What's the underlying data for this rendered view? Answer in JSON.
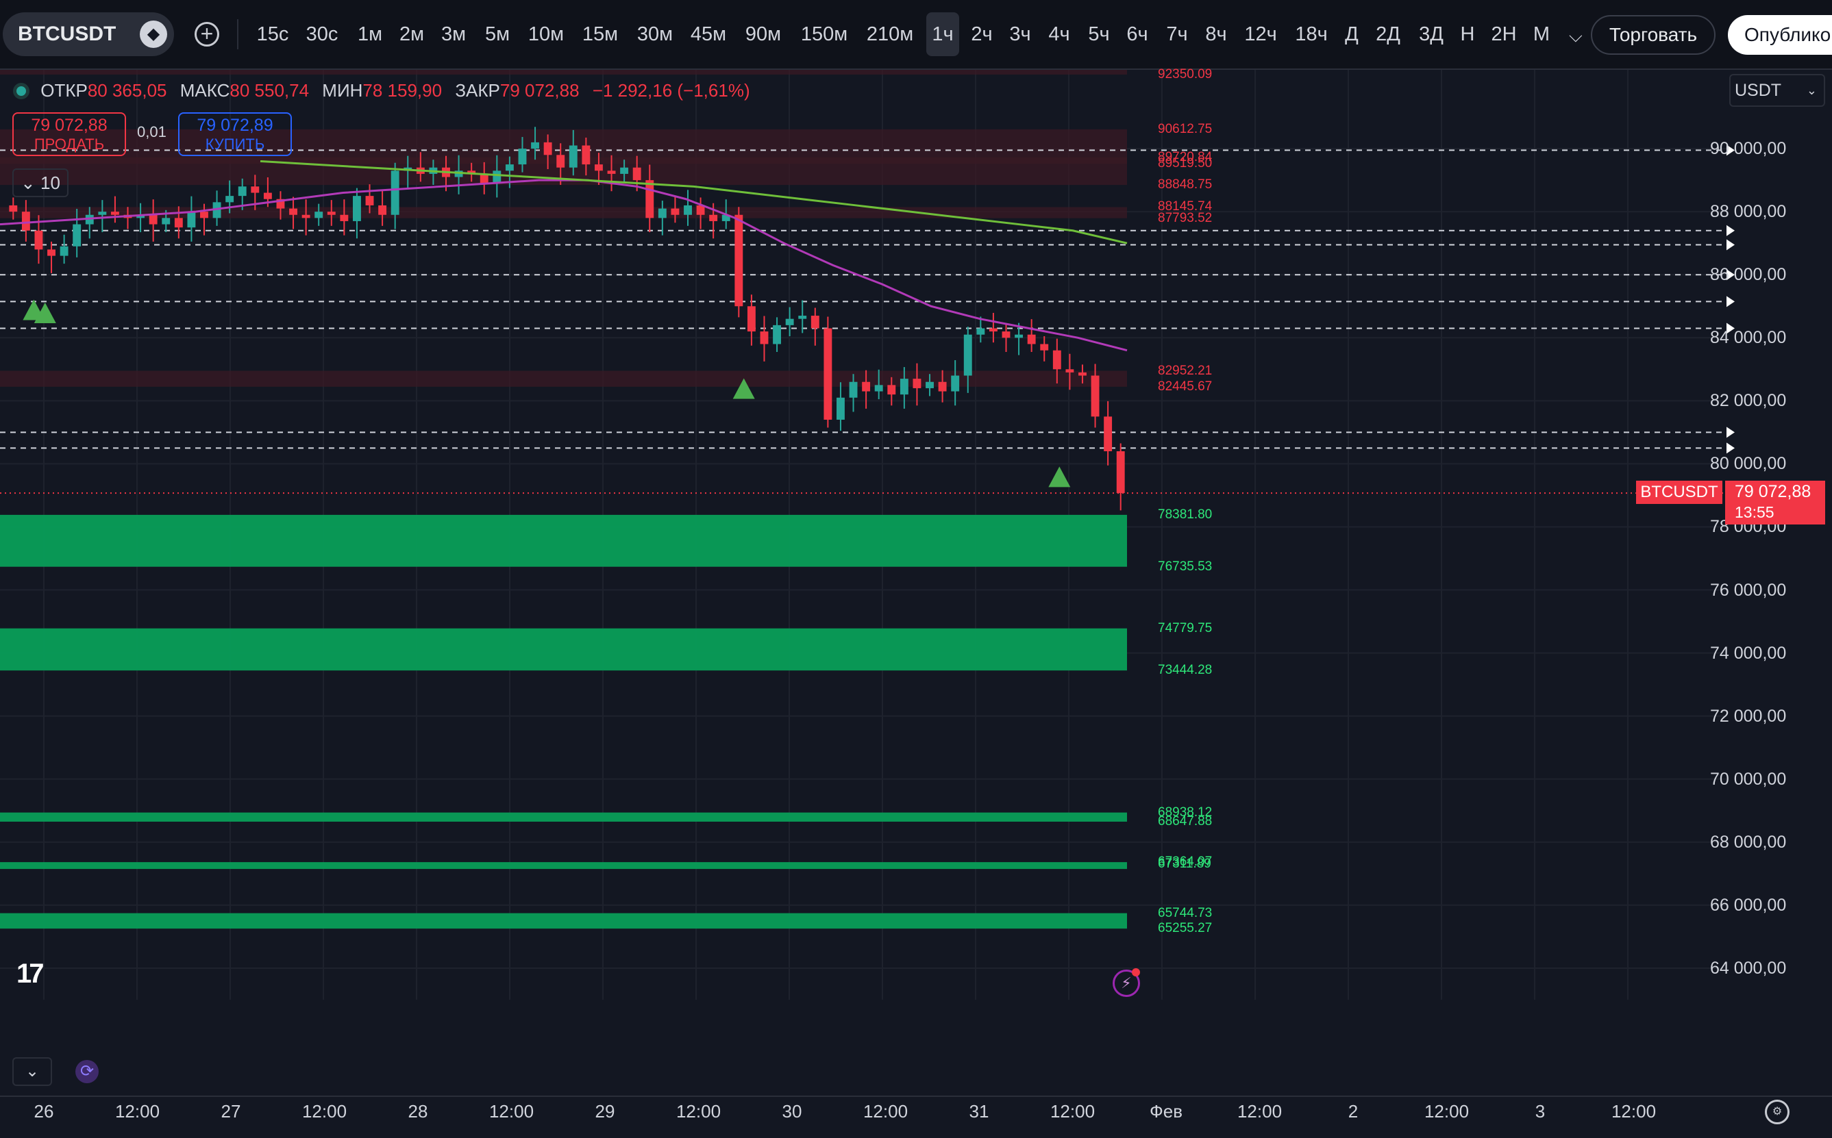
{
  "toolbar": {
    "symbol": "BTCUSDT",
    "intervals": [
      "15с",
      "30с",
      "1м",
      "2м",
      "3м",
      "5м",
      "10м",
      "15м",
      "30м",
      "45м",
      "90м",
      "150м",
      "210м",
      "1ч",
      "2ч",
      "3ч",
      "4ч",
      "5ч",
      "6ч",
      "7ч",
      "8ч",
      "12ч",
      "18ч",
      "Д",
      "2Д",
      "3Д",
      "Н",
      "2Н",
      "М"
    ],
    "active_interval": "1ч",
    "trade_label": "Торговать",
    "publish_label": "Опубликовать"
  },
  "legend": {
    "open_label": "ОТКР",
    "open": "80 365,05",
    "high_label": "МАКС",
    "high": "80 550,74",
    "low_label": "МИН",
    "low": "78 159,90",
    "close_label": "ЗАКР",
    "close": "79 072,88",
    "change": "−1 292,16 (−1,61%)"
  },
  "order_panel": {
    "sell_price": "79 072,88",
    "sell_label": "ПРОДАТЬ",
    "buy_price": "79 072,89",
    "buy_label": "КУПИТЬ",
    "spread": "0,01",
    "indicator_count": "10"
  },
  "currency": "USDT",
  "price_axis": [
    "90 000,00",
    "88 000,00",
    "86 000,00",
    "84 000,00",
    "82 000,00",
    "80 000,00",
    "78 000,00",
    "76 000,00",
    "74 000,00",
    "72 000,00",
    "70 000,00",
    "68 000,00",
    "66 000,00",
    "64 000,00"
  ],
  "current_price_tag": {
    "symbol": "BTCUSDT",
    "price": "79 072,88",
    "countdown": "13:55"
  },
  "time_axis": [
    "26",
    "12:00",
    "27",
    "12:00",
    "28",
    "12:00",
    "29",
    "12:00",
    "30",
    "12:00",
    "31",
    "12:00",
    "Фев",
    "12:00",
    "2",
    "12:00",
    "3",
    "12:00"
  ],
  "colors": {
    "up": "#26a69a",
    "down": "#f23645",
    "ma_fast": "#b23ab8",
    "ma_slow": "#6fbf3a",
    "demand_zone": "#089e59",
    "supply_zone": "#3a1a24"
  },
  "chart_data": {
    "type": "candlestick",
    "y_range": [
      63000,
      92500
    ],
    "x_labels": [
      "26",
      "27",
      "28",
      "29",
      "30",
      "31",
      "Фев",
      "2",
      "3"
    ],
    "resistance_levels": [
      "92350.09",
      "90612.75",
      "89720.84",
      "89519.50",
      "88848.75",
      "88145.74",
      "87793.52",
      "82952.21",
      "82445.67"
    ],
    "support_levels": [
      "78381.80",
      "76735.53",
      "74779.75",
      "73444.28",
      "68938.12",
      "68647.88",
      "67364.07",
      "67311.89",
      "65744.73",
      "65255.27"
    ],
    "demand_zones": [
      [
        76735.53,
        78381.8
      ],
      [
        73444.28,
        74779.75
      ],
      [
        68647.88,
        68938.12
      ],
      [
        67311.89,
        67364.07
      ],
      [
        65255.27,
        65744.73
      ]
    ],
    "supply_zones": [
      [
        92350.09,
        92500
      ],
      [
        89519.5,
        90612.75
      ],
      [
        88848.75,
        89720.84
      ],
      [
        87793.52,
        88145.74
      ],
      [
        82445.67,
        82952.21
      ]
    ],
    "horizontal_lines": [
      89950,
      87400,
      86950,
      86000,
      85150,
      84300,
      81000,
      80500
    ],
    "buy_signals": [
      [
        0.03,
        85300
      ],
      [
        0.04,
        85200
      ],
      [
        0.66,
        82800
      ],
      [
        0.94,
        80000
      ]
    ],
    "candles_close": [
      88000,
      87400,
      86800,
      86600,
      86900,
      87600,
      87900,
      88000,
      87900,
      87800,
      87900,
      87600,
      87800,
      87500,
      88000,
      87800,
      88300,
      88500,
      88800,
      88600,
      88400,
      88100,
      87900,
      87800,
      88000,
      87900,
      87700,
      88500,
      88200,
      87900,
      89300,
      89400,
      89200,
      89400,
      89100,
      89300,
      89200,
      88900,
      89300,
      89500,
      90000,
      90200,
      89800,
      89400,
      90100,
      89500,
      89300,
      89200,
      89400,
      89000,
      87800,
      88100,
      87900,
      88200,
      87900,
      87700,
      87900,
      85000,
      84200,
      83800,
      84400,
      84600,
      84700,
      84300,
      81400,
      82100,
      82600,
      82300,
      82500,
      82200,
      82700,
      82400,
      82600,
      82300,
      82800,
      84100,
      84300,
      84200,
      84000,
      84100,
      83800,
      83600,
      83000,
      82900,
      82800,
      81500,
      80400,
      79072.88
    ],
    "ma_fast": [
      87600,
      87700,
      87800,
      87900,
      88000,
      88200,
      88400,
      88600,
      88700,
      88800,
      88900,
      89000,
      89000,
      88800,
      88400,
      87800,
      87000,
      86300,
      85700,
      85000,
      84600,
      84300,
      84000,
      83600
    ],
    "ma_slow": [
      89600,
      89500,
      89400,
      89300,
      89200,
      89100,
      89000,
      88900,
      88800,
      88600,
      88400,
      88200,
      88000,
      87800,
      87600,
      87400,
      87000
    ]
  }
}
